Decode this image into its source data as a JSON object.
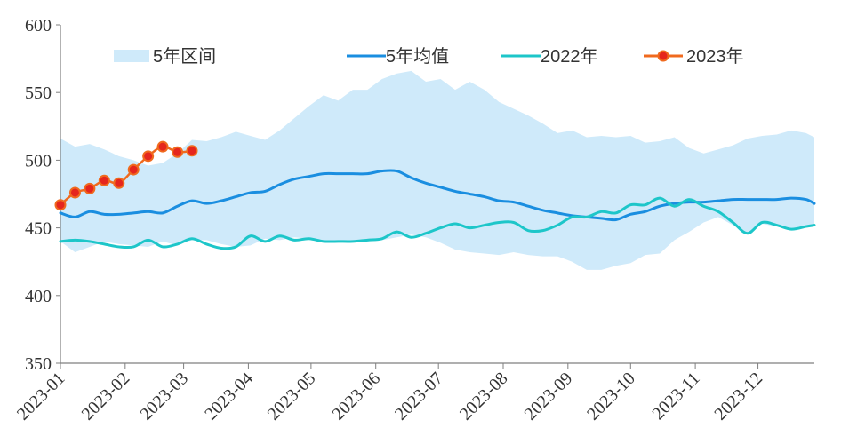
{
  "chart_data": {
    "type": "line",
    "title": "",
    "xlabel": "",
    "ylabel": "",
    "ylim": [
      350,
      600
    ],
    "y_ticks": [
      "350",
      "400",
      "450",
      "500",
      "550",
      "600"
    ],
    "x_range": [
      "2023-01-01",
      "2023-12-28"
    ],
    "x_ticks": [
      "2023-01",
      "2023-02",
      "2023-03",
      "2023-04",
      "2023-05",
      "2023-06",
      "2023-07",
      "2023-08",
      "2023-09",
      "2023-10",
      "2023-11",
      "2023-12"
    ],
    "grid": false,
    "legend_position": "top",
    "series": [
      {
        "name": "5年区间",
        "kind": "range-band",
        "color": "#cfeafa",
        "x": [
          "2023-01-01",
          "2023-01-08",
          "2023-01-15",
          "2023-01-22",
          "2023-01-29",
          "2023-02-05",
          "2023-02-12",
          "2023-02-19",
          "2023-02-26",
          "2023-03-05",
          "2023-03-12",
          "2023-03-19",
          "2023-03-26",
          "2023-04-02",
          "2023-04-09",
          "2023-04-16",
          "2023-04-23",
          "2023-04-30",
          "2023-05-07",
          "2023-05-14",
          "2023-05-21",
          "2023-05-28",
          "2023-06-04",
          "2023-06-11",
          "2023-06-18",
          "2023-06-25",
          "2023-07-02",
          "2023-07-09",
          "2023-07-16",
          "2023-07-23",
          "2023-07-30",
          "2023-08-06",
          "2023-08-13",
          "2023-08-20",
          "2023-08-27",
          "2023-09-03",
          "2023-09-10",
          "2023-09-17",
          "2023-09-24",
          "2023-10-01",
          "2023-10-08",
          "2023-10-15",
          "2023-10-22",
          "2023-10-29",
          "2023-11-05",
          "2023-11-12",
          "2023-11-19",
          "2023-11-26",
          "2023-12-03",
          "2023-12-10",
          "2023-12-17",
          "2023-12-24",
          "2023-12-28"
        ],
        "high": [
          516,
          510,
          512,
          508,
          503,
          500,
          496,
          498,
          505,
          515,
          514,
          517,
          521,
          518,
          515,
          522,
          531,
          540,
          548,
          544,
          552,
          552,
          560,
          564,
          566,
          558,
          560,
          552,
          558,
          552,
          543,
          538,
          533,
          527,
          520,
          522,
          517,
          518,
          517,
          518,
          513,
          514,
          517,
          509,
          505,
          508,
          511,
          516,
          518,
          519,
          522,
          520,
          517
        ],
        "low": [
          440,
          432,
          436,
          440,
          438,
          437,
          436,
          440,
          437,
          441,
          441,
          438,
          436,
          437,
          442,
          441,
          443,
          442,
          441,
          440,
          440,
          440,
          441,
          443,
          445,
          443,
          439,
          434,
          432,
          431,
          430,
          432,
          430,
          429,
          429,
          425,
          419,
          419,
          422,
          424,
          430,
          431,
          441,
          447,
          454,
          458,
          452,
          446,
          453,
          451,
          449,
          451,
          452
        ]
      },
      {
        "name": "5年均值",
        "kind": "line",
        "color": "#1a8ee0",
        "x": [
          "2023-01-01",
          "2023-01-08",
          "2023-01-15",
          "2023-01-22",
          "2023-01-29",
          "2023-02-05",
          "2023-02-12",
          "2023-02-19",
          "2023-02-26",
          "2023-03-05",
          "2023-03-12",
          "2023-03-19",
          "2023-03-26",
          "2023-04-02",
          "2023-04-09",
          "2023-04-16",
          "2023-04-23",
          "2023-04-30",
          "2023-05-07",
          "2023-05-14",
          "2023-05-21",
          "2023-05-28",
          "2023-06-04",
          "2023-06-11",
          "2023-06-18",
          "2023-06-25",
          "2023-07-02",
          "2023-07-09",
          "2023-07-16",
          "2023-07-23",
          "2023-07-30",
          "2023-08-06",
          "2023-08-13",
          "2023-08-20",
          "2023-08-27",
          "2023-09-03",
          "2023-09-10",
          "2023-09-17",
          "2023-09-24",
          "2023-10-01",
          "2023-10-08",
          "2023-10-15",
          "2023-10-22",
          "2023-10-29",
          "2023-11-05",
          "2023-11-12",
          "2023-11-19",
          "2023-11-26",
          "2023-12-03",
          "2023-12-10",
          "2023-12-17",
          "2023-12-24",
          "2023-12-28"
        ],
        "values": [
          461,
          458,
          462,
          460,
          460,
          461,
          462,
          461,
          466,
          470,
          468,
          470,
          473,
          476,
          477,
          482,
          486,
          488,
          490,
          490,
          490,
          490,
          492,
          492,
          487,
          483,
          480,
          477,
          475,
          473,
          470,
          469,
          466,
          463,
          461,
          459,
          458,
          457,
          456,
          460,
          462,
          466,
          468,
          469,
          469,
          470,
          471,
          471,
          471,
          471,
          472,
          471,
          468
        ]
      },
      {
        "name": "2022年",
        "kind": "line",
        "color": "#1dc6c9",
        "x": [
          "2023-01-01",
          "2023-01-08",
          "2023-01-15",
          "2023-01-22",
          "2023-01-29",
          "2023-02-05",
          "2023-02-12",
          "2023-02-19",
          "2023-02-26",
          "2023-03-05",
          "2023-03-12",
          "2023-03-19",
          "2023-03-26",
          "2023-04-02",
          "2023-04-09",
          "2023-04-16",
          "2023-04-23",
          "2023-04-30",
          "2023-05-07",
          "2023-05-14",
          "2023-05-21",
          "2023-05-28",
          "2023-06-04",
          "2023-06-11",
          "2023-06-18",
          "2023-06-25",
          "2023-07-02",
          "2023-07-09",
          "2023-07-16",
          "2023-07-23",
          "2023-07-30",
          "2023-08-06",
          "2023-08-13",
          "2023-08-20",
          "2023-08-27",
          "2023-09-03",
          "2023-09-10",
          "2023-09-17",
          "2023-09-24",
          "2023-10-01",
          "2023-10-08",
          "2023-10-15",
          "2023-10-22",
          "2023-10-29",
          "2023-11-05",
          "2023-11-12",
          "2023-11-19",
          "2023-11-26",
          "2023-12-03",
          "2023-12-10",
          "2023-12-17",
          "2023-12-24",
          "2023-12-28"
        ],
        "values": [
          440,
          441,
          440,
          438,
          436,
          436,
          441,
          436,
          438,
          442,
          438,
          435,
          436,
          444,
          440,
          444,
          441,
          442,
          440,
          440,
          440,
          441,
          442,
          447,
          443,
          446,
          450,
          453,
          450,
          452,
          454,
          454,
          448,
          448,
          452,
          458,
          458,
          462,
          461,
          467,
          467,
          472,
          466,
          471,
          466,
          462,
          454,
          446,
          454,
          452,
          449,
          451,
          452
        ]
      },
      {
        "name": "2023年",
        "kind": "line-markers",
        "color": "#f06a1e",
        "marker_color": "#e5261d",
        "x": [
          "2023-01-01",
          "2023-01-08",
          "2023-01-15",
          "2023-01-22",
          "2023-01-29",
          "2023-02-05",
          "2023-02-12",
          "2023-02-19",
          "2023-02-26",
          "2023-03-05"
        ],
        "values": [
          467,
          476,
          479,
          485,
          483,
          493,
          503,
          510,
          506,
          507
        ]
      }
    ]
  }
}
